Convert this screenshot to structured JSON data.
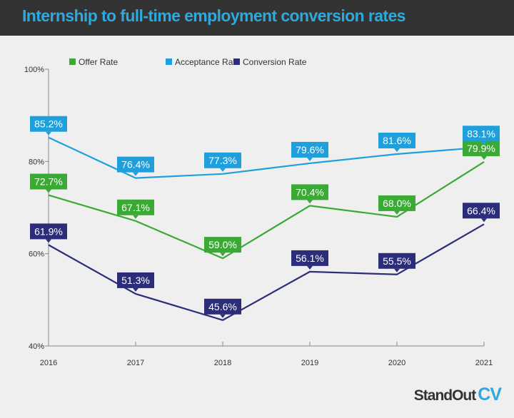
{
  "chart_data": {
    "type": "line",
    "title": "Internship to full-time employment conversion rates",
    "categories": [
      "2016",
      "2017",
      "2018",
      "2019",
      "2020",
      "2021"
    ],
    "series": [
      {
        "name": "Offer Rate",
        "color": "#3aaa35",
        "values": [
          72.7,
          67.1,
          59.0,
          70.4,
          68.0,
          79.9
        ]
      },
      {
        "name": "Acceptance Rate",
        "color": "#1fa0dc",
        "values": [
          85.2,
          76.4,
          77.3,
          79.6,
          81.6,
          83.1
        ]
      },
      {
        "name": "Conversion Rate",
        "color": "#2b2d7a",
        "values": [
          61.9,
          51.3,
          45.6,
          56.1,
          55.5,
          66.4
        ]
      }
    ],
    "yticks": [
      "40%",
      "60%",
      "80%",
      "100%"
    ],
    "ylim": [
      40,
      100
    ],
    "legend": "top",
    "grid": false,
    "data_labels": true
  },
  "brand": {
    "part1": "StandOut",
    "part2": "CV"
  }
}
